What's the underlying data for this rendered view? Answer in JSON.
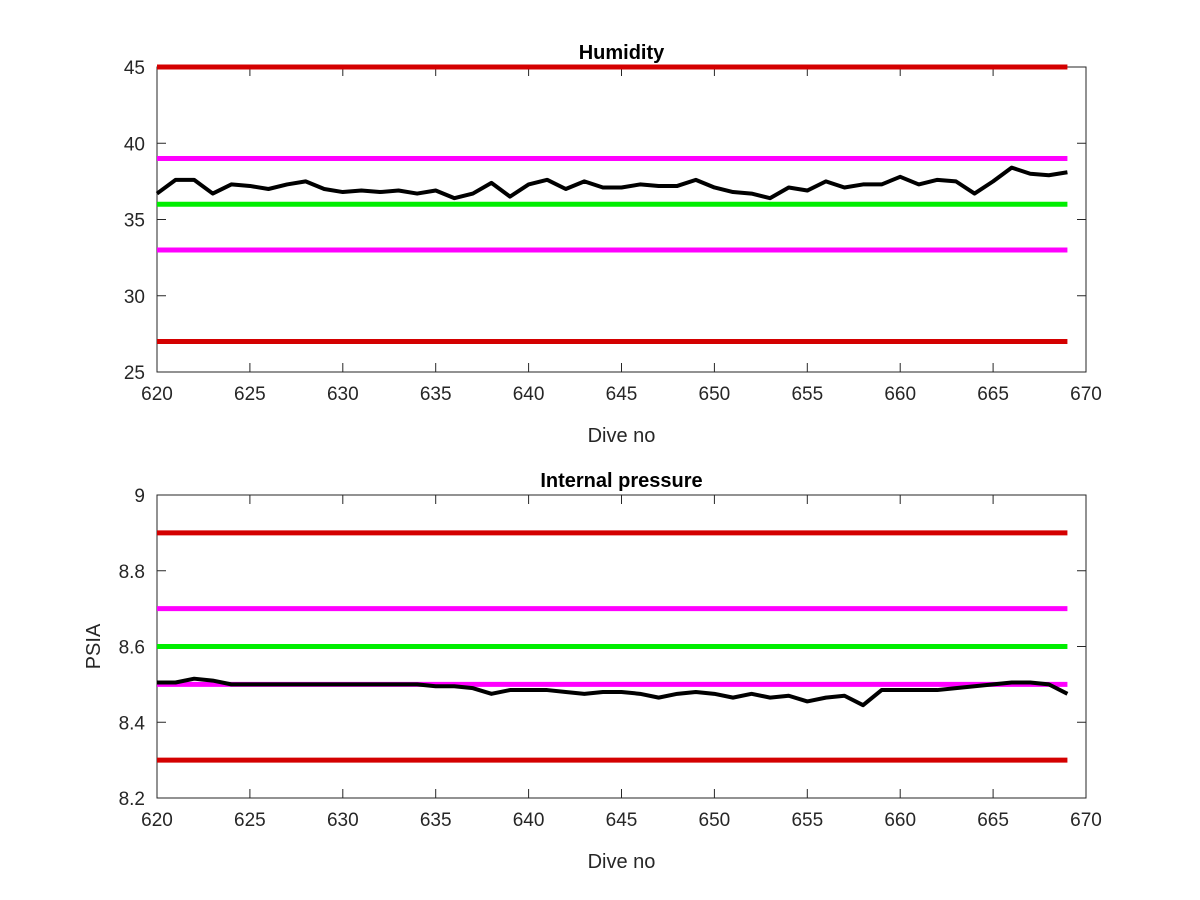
{
  "chart_data": [
    {
      "type": "line",
      "title": "Humidity",
      "xlabel": "Dive no",
      "ylabel": "",
      "xlim": [
        620,
        670
      ],
      "ylim": [
        25,
        45
      ],
      "xticks": [
        620,
        625,
        630,
        635,
        640,
        645,
        650,
        655,
        660,
        665,
        670
      ],
      "yticks": [
        25,
        30,
        35,
        40,
        45
      ],
      "grid": false,
      "reference_lines": [
        {
          "y": 45,
          "color": "#d40000"
        },
        {
          "y": 39,
          "color": "#ff00ff"
        },
        {
          "y": 36,
          "color": "#00ee00"
        },
        {
          "y": 33,
          "color": "#ff00ff"
        },
        {
          "y": 27,
          "color": "#d40000"
        }
      ],
      "series": [
        {
          "color": "#000000",
          "x": [
            620,
            621,
            622,
            623,
            624,
            625,
            626,
            627,
            628,
            629,
            630,
            631,
            632,
            633,
            634,
            635,
            636,
            637,
            638,
            639,
            640,
            641,
            642,
            643,
            644,
            645,
            646,
            647,
            648,
            649,
            650,
            651,
            652,
            653,
            654,
            655,
            656,
            657,
            658,
            659,
            660,
            661,
            662,
            663,
            664,
            665,
            666,
            667,
            668,
            669
          ],
          "y": [
            36.7,
            37.6,
            37.6,
            36.7,
            37.3,
            37.2,
            37.0,
            37.3,
            37.5,
            37.0,
            36.8,
            36.9,
            36.8,
            36.9,
            36.7,
            36.9,
            36.4,
            36.7,
            37.4,
            36.5,
            37.3,
            37.6,
            37.0,
            37.5,
            37.1,
            37.1,
            37.3,
            37.2,
            37.2,
            37.6,
            37.1,
            36.8,
            36.7,
            36.4,
            37.1,
            36.9,
            37.5,
            37.1,
            37.3,
            37.3,
            37.8,
            37.3,
            37.6,
            37.5,
            36.7,
            37.5,
            38.4,
            38.0,
            37.9,
            38.1
          ]
        }
      ]
    },
    {
      "type": "line",
      "title": "Internal pressure",
      "xlabel": "Dive no",
      "ylabel": "PSIA",
      "xlim": [
        620,
        670
      ],
      "ylim": [
        8.2,
        9
      ],
      "xticks": [
        620,
        625,
        630,
        635,
        640,
        645,
        650,
        655,
        660,
        665,
        670
      ],
      "yticks": [
        8.2,
        8.4,
        8.6,
        8.8,
        9
      ],
      "grid": false,
      "reference_lines": [
        {
          "y": 8.9,
          "color": "#d40000"
        },
        {
          "y": 8.7,
          "color": "#ff00ff"
        },
        {
          "y": 8.6,
          "color": "#00ee00"
        },
        {
          "y": 8.5,
          "color": "#ff00ff"
        },
        {
          "y": 8.3,
          "color": "#d40000"
        }
      ],
      "series": [
        {
          "color": "#000000",
          "x": [
            620,
            621,
            622,
            623,
            624,
            625,
            626,
            627,
            628,
            629,
            630,
            631,
            632,
            633,
            634,
            635,
            636,
            637,
            638,
            639,
            640,
            641,
            642,
            643,
            644,
            645,
            646,
            647,
            648,
            649,
            650,
            651,
            652,
            653,
            654,
            655,
            656,
            657,
            658,
            659,
            660,
            661,
            662,
            663,
            664,
            665,
            666,
            667,
            668,
            669
          ],
          "y": [
            8.505,
            8.505,
            8.515,
            8.51,
            8.5,
            8.5,
            8.5,
            8.5,
            8.5,
            8.5,
            8.5,
            8.5,
            8.5,
            8.5,
            8.5,
            8.495,
            8.495,
            8.49,
            8.475,
            8.485,
            8.485,
            8.485,
            8.48,
            8.475,
            8.48,
            8.48,
            8.475,
            8.465,
            8.475,
            8.48,
            8.475,
            8.465,
            8.475,
            8.465,
            8.47,
            8.455,
            8.465,
            8.47,
            8.445,
            8.485,
            8.485,
            8.485,
            8.485,
            8.49,
            8.495,
            8.5,
            8.505,
            8.505,
            8.5,
            8.475
          ]
        }
      ]
    }
  ]
}
